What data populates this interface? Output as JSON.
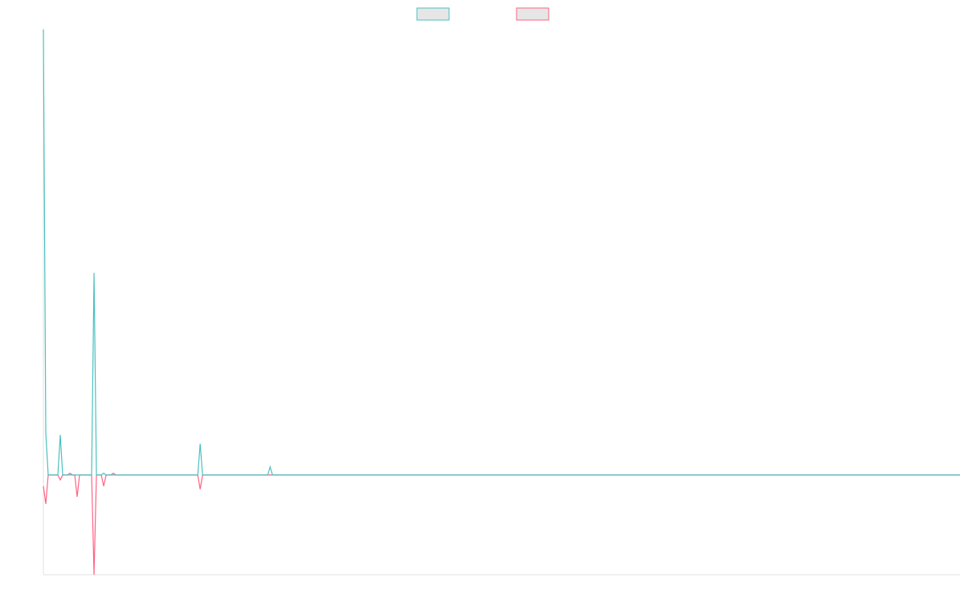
{
  "chart_data": {
    "type": "line",
    "x": [
      0,
      1,
      2,
      6,
      7,
      8,
      10,
      11,
      12,
      13,
      14,
      15,
      20,
      21,
      22,
      24,
      25,
      26,
      28,
      29,
      30,
      64,
      65,
      66,
      93,
      94,
      95,
      380
    ],
    "series": [
      {
        "color": "#4bc0c0",
        "values": [
          1,
          0.094,
          0,
          0,
          0.09,
          0,
          0,
          0,
          0,
          0,
          0,
          0,
          0,
          0.454,
          0,
          0,
          0.004,
          0,
          0,
          0,
          0,
          0,
          0.07,
          0,
          0,
          0.018,
          0,
          0
        ]
      },
      {
        "color": "#ff6384",
        "values": [
          -0.025,
          -0.065,
          0,
          0,
          -0.011,
          0,
          0,
          0.004,
          0,
          0,
          -0.049,
          0,
          0,
          -0.224,
          0,
          0,
          -0.025,
          0,
          0,
          0.004,
          0,
          0,
          -0.032,
          0,
          0,
          0,
          0,
          0
        ]
      }
    ],
    "xlim": [
      0,
      380
    ],
    "ylim": [
      -0.224,
      1
    ],
    "legend": "top",
    "grid": false
  }
}
